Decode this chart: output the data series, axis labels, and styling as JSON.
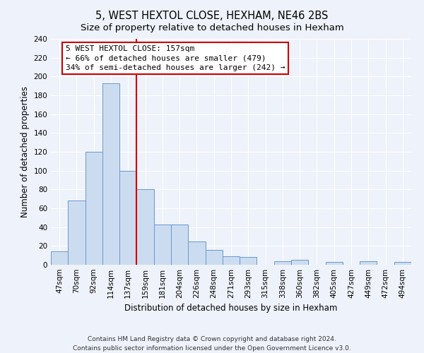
{
  "title": "5, WEST HEXTOL CLOSE, HEXHAM, NE46 2BS",
  "subtitle": "Size of property relative to detached houses in Hexham",
  "xlabel": "Distribution of detached houses by size in Hexham",
  "ylabel": "Number of detached properties",
  "bar_labels": [
    "47sqm",
    "70sqm",
    "92sqm",
    "114sqm",
    "137sqm",
    "159sqm",
    "181sqm",
    "204sqm",
    "226sqm",
    "248sqm",
    "271sqm",
    "293sqm",
    "315sqm",
    "338sqm",
    "360sqm",
    "382sqm",
    "405sqm",
    "427sqm",
    "449sqm",
    "472sqm",
    "494sqm"
  ],
  "bar_values": [
    14,
    68,
    120,
    193,
    100,
    80,
    43,
    43,
    25,
    16,
    9,
    8,
    0,
    4,
    5,
    0,
    3,
    0,
    4,
    0,
    3
  ],
  "bar_color": "#ccdcf0",
  "bar_edge_color": "#6699cc",
  "highlight_line_color": "#cc0000",
  "annotation_box_edge_color": "#cc0000",
  "annotation_text_line1": "5 WEST HEXTOL CLOSE: 157sqm",
  "annotation_text_line2": "← 66% of detached houses are smaller (479)",
  "annotation_text_line3": "34% of semi-detached houses are larger (242) →",
  "ylim": [
    0,
    240
  ],
  "yticks": [
    0,
    20,
    40,
    60,
    80,
    100,
    120,
    140,
    160,
    180,
    200,
    220,
    240
  ],
  "footer_line1": "Contains HM Land Registry data © Crown copyright and database right 2024.",
  "footer_line2": "Contains public sector information licensed under the Open Government Licence v3.0.",
  "background_color": "#eef2fa",
  "plot_bg_color": "#eef2fa",
  "grid_color": "#ffffff",
  "title_fontsize": 10.5,
  "subtitle_fontsize": 9.5,
  "axis_label_fontsize": 8.5,
  "tick_fontsize": 7.5,
  "annotation_fontsize": 8,
  "footer_fontsize": 6.5
}
